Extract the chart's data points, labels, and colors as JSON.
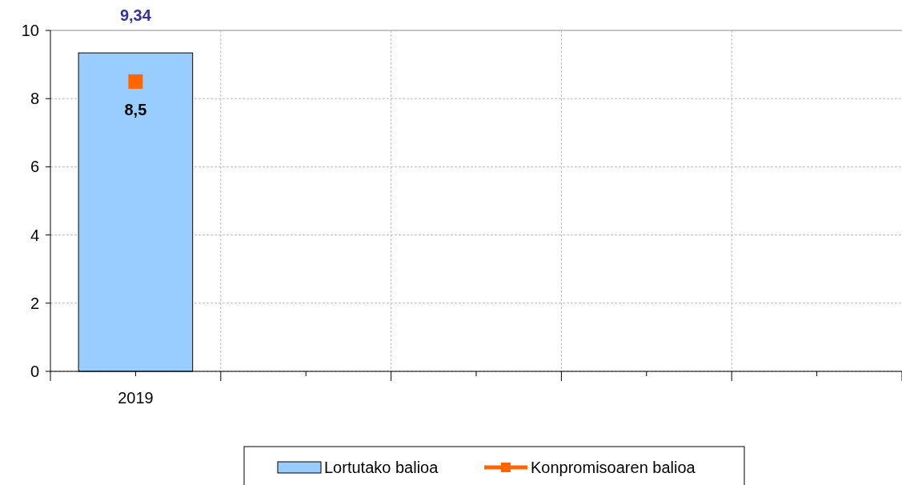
{
  "chart_data": {
    "type": "bar",
    "categories": [
      "2019",
      null,
      null,
      null,
      null
    ],
    "series": [
      {
        "name": "Lortutako balioa",
        "color": "#99ccff",
        "values": [
          9.34,
          null,
          null,
          null,
          null
        ],
        "value_labels": [
          "9,34",
          null,
          null,
          null,
          null
        ]
      },
      {
        "name": "Konpromisoaren balioa",
        "type": "line",
        "color": "#ff6600",
        "marker": "square",
        "values": [
          8.5,
          null,
          null,
          null,
          null
        ],
        "value_labels": [
          "8,5",
          null,
          null,
          null,
          null
        ]
      }
    ],
    "ylim": [
      0,
      10
    ],
    "yticks": [
      0,
      2,
      4,
      6,
      8,
      10
    ],
    "grid": true,
    "legend": "bottom"
  }
}
